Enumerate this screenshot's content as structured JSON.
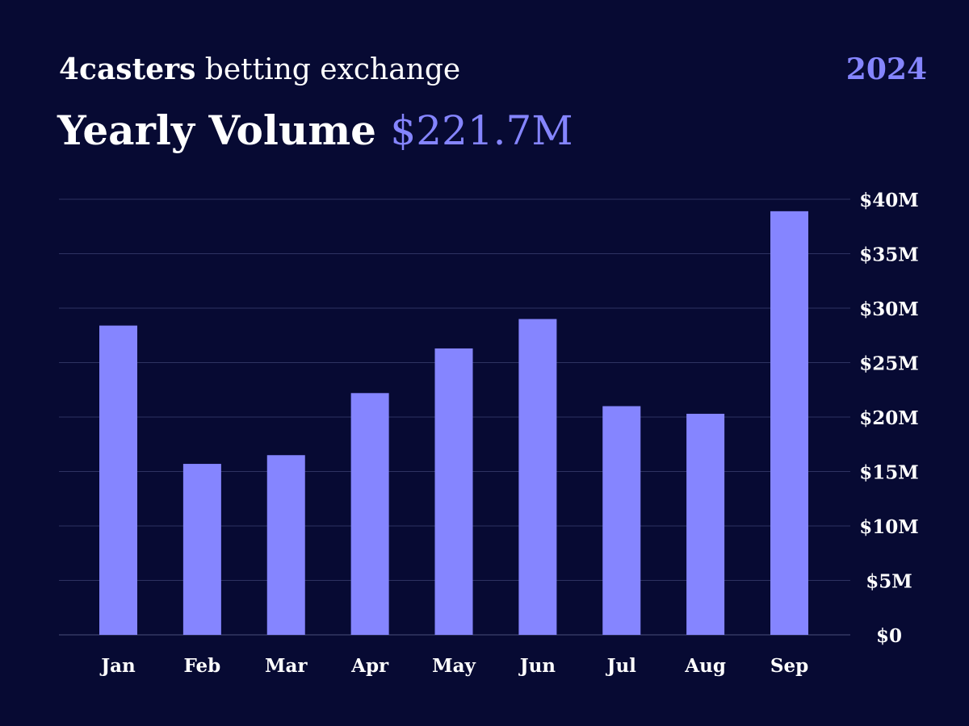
{
  "header": {
    "brand_name": "4casters",
    "brand_suffix": "betting exchange",
    "year": "2024",
    "headline_label": "Yearly Volume",
    "headline_total": "$221.7M"
  },
  "colors": {
    "background": "#070a33",
    "accent": "#8585ff",
    "bar": "#8585ff",
    "gridline": "#2e3362",
    "text": "#ffffff"
  },
  "chart_data": {
    "type": "bar",
    "title": "Yearly Volume",
    "categories": [
      "Jan",
      "Feb",
      "Mar",
      "Apr",
      "May",
      "Jun",
      "Jul",
      "Aug",
      "Sep"
    ],
    "values": [
      28.4,
      15.7,
      16.5,
      22.2,
      26.3,
      29.0,
      21.0,
      20.3,
      38.9
    ],
    "unit": "M",
    "y_ticks": [
      {
        "value": 0,
        "label": "$0"
      },
      {
        "value": 5,
        "label": "$5M"
      },
      {
        "value": 10,
        "label": "$10M"
      },
      {
        "value": 15,
        "label": "$15M"
      },
      {
        "value": 20,
        "label": "$20M"
      },
      {
        "value": 25,
        "label": "$25M"
      },
      {
        "value": 30,
        "label": "$30M"
      },
      {
        "value": 35,
        "label": "$35M"
      },
      {
        "value": 40,
        "label": "$40M"
      }
    ],
    "ylim": [
      0,
      40
    ],
    "y_axis_side": "right",
    "grid": true,
    "legend": "none"
  }
}
